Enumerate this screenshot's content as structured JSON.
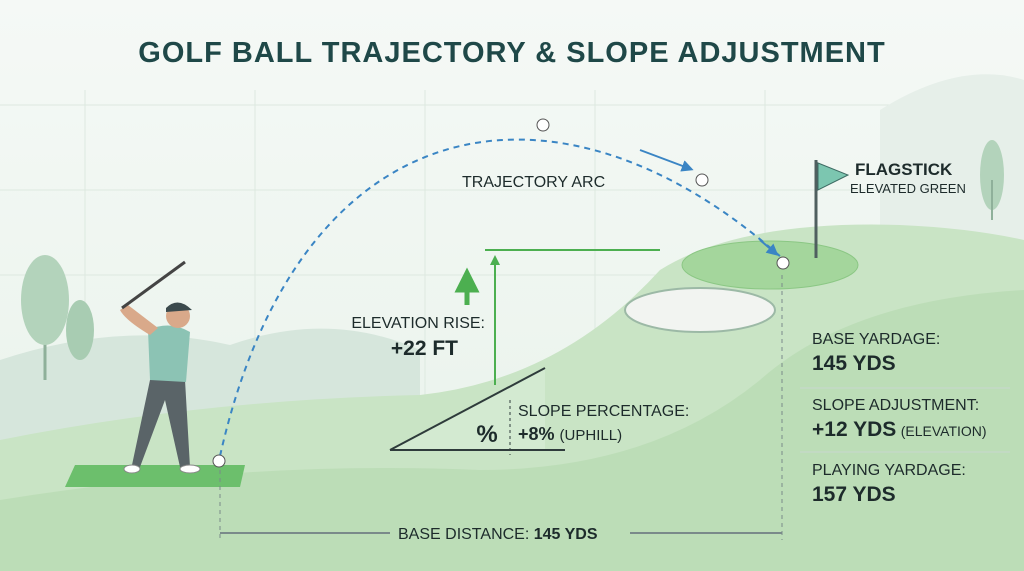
{
  "header": {
    "title": "GOLF BALL TRAJECTORY & SLOPE ADJUSTMENT"
  },
  "labels": {
    "trajectory": "TRAJECTORY ARC",
    "flagstick": "FLAGSTICK",
    "green": "ELEVATED GREEN",
    "elevation": {
      "label": "ELEVATION RISE:",
      "value": "+22 FT"
    },
    "slope": {
      "symbol": "%",
      "label": "SLOPE PERCENTAGE:",
      "value": "+8%",
      "note": "(UPHILL)"
    },
    "base_distance": {
      "label": "BASE DISTANCE:",
      "value": "145 YDS"
    }
  },
  "panel": [
    {
      "label": "BASE YARDAGE:",
      "value": "145 YDS"
    },
    {
      "label": "SLOPE ADJUSTMENT:",
      "value": "+12 YDS",
      "note": "(ELEVATION)"
    },
    {
      "label": "PLAYING YARDAGE:",
      "value": "157 YDS"
    }
  ]
}
